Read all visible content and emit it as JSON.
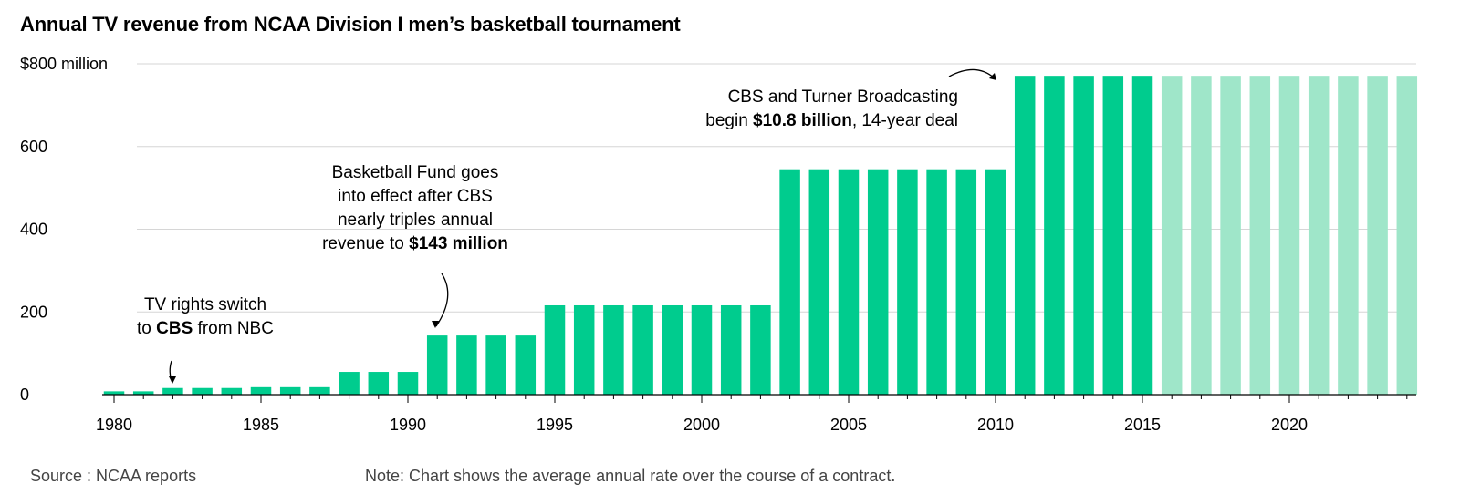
{
  "title": "Annual TV revenue from NCAA Division I men’s basketball tournament",
  "source": "Source : NCAA reports",
  "note": "Note: Chart shows the average annual rate over the course of a contract.",
  "colors": {
    "actual": "#00cc8e",
    "projected": "#9fe6c9",
    "grid": "#d6d6d6",
    "axis": "#000000"
  },
  "chart_data": {
    "type": "bar",
    "title": "Annual TV revenue from NCAA Division I men’s basketball tournament",
    "xlabel": "",
    "ylabel": "",
    "ylim": [
      0,
      800
    ],
    "y_ticks": [
      {
        "value": 0,
        "label": "0"
      },
      {
        "value": 200,
        "label": "200"
      },
      {
        "value": 400,
        "label": "400"
      },
      {
        "value": 600,
        "label": "600"
      },
      {
        "value": 800,
        "label": "$800 million"
      }
    ],
    "x_ticks": [
      1980,
      1985,
      1990,
      1995,
      2000,
      2005,
      2010,
      2015,
      2020
    ],
    "grid": true,
    "categories": [
      1980,
      1981,
      1982,
      1983,
      1984,
      1985,
      1986,
      1987,
      1988,
      1989,
      1990,
      1991,
      1992,
      1993,
      1994,
      1995,
      1996,
      1997,
      1998,
      1999,
      2000,
      2001,
      2002,
      2003,
      2004,
      2005,
      2006,
      2007,
      2008,
      2009,
      2010,
      2011,
      2012,
      2013,
      2014,
      2015,
      2016,
      2017,
      2018,
      2019,
      2020,
      2021,
      2022,
      2023,
      2024
    ],
    "values": [
      8,
      8,
      16,
      16,
      16,
      18,
      18,
      18,
      55,
      55,
      55,
      143,
      143,
      143,
      143,
      216,
      216,
      216,
      216,
      216,
      216,
      216,
      216,
      545,
      545,
      545,
      545,
      545,
      545,
      545,
      545,
      771,
      771,
      771,
      771,
      771,
      771,
      771,
      771,
      771,
      771,
      771,
      771,
      771,
      771
    ],
    "projected_from": 2016,
    "annotations": [
      {
        "lines": [
          [
            {
              "t": "TV rights switch"
            }
          ],
          [
            {
              "t": "to "
            },
            {
              "t": "CBS",
              "b": true
            },
            {
              "t": " from NBC"
            }
          ]
        ],
        "year": 1982
      },
      {
        "lines": [
          [
            {
              "t": "Basketball Fund goes"
            }
          ],
          [
            {
              "t": "into effect after CBS"
            }
          ],
          [
            {
              "t": "nearly triples annual"
            }
          ],
          [
            {
              "t": "revenue to "
            },
            {
              "t": "$143 million",
              "b": true
            }
          ]
        ],
        "year": 1991
      },
      {
        "lines": [
          [
            {
              "t": "CBS and Turner Broadcasting"
            }
          ],
          [
            {
              "t": "begin "
            },
            {
              "t": "$10.8 billion",
              "b": true
            },
            {
              "t": ", 14-year deal"
            }
          ]
        ],
        "year": 2011
      }
    ]
  }
}
